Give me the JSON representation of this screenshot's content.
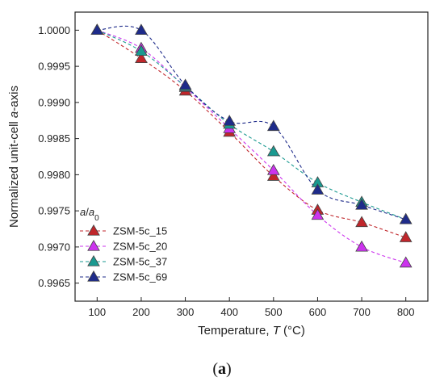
{
  "chart_data": {
    "type": "line",
    "markers": "triangle",
    "line_style": "dashed-smooth",
    "x": [
      100,
      200,
      300,
      400,
      500,
      600,
      700,
      800
    ],
    "series": [
      {
        "name": "ZSM-5c_15",
        "color": "#c0262b",
        "values": [
          1.0,
          0.99961,
          0.99916,
          0.99859,
          0.99798,
          0.99751,
          0.99734,
          0.99713
        ]
      },
      {
        "name": "ZSM-5c_20",
        "color": "#cc33ee",
        "values": [
          1.0,
          0.99975,
          0.99921,
          0.99864,
          0.99806,
          0.99744,
          0.997,
          0.99678
        ]
      },
      {
        "name": "ZSM-5c_37",
        "color": "#1a9990",
        "values": [
          1.0,
          0.99971,
          0.99922,
          0.9987,
          0.99832,
          0.99789,
          0.99762,
          0.99738
        ]
      },
      {
        "name": "ZSM-5c_69",
        "color": "#1e2b8a",
        "values": [
          1.0,
          1.0,
          0.99924,
          0.99874,
          0.99867,
          0.99779,
          0.99758,
          0.99738
        ]
      }
    ],
    "xlim": [
      50,
      850
    ],
    "ylim": [
      0.99625,
      1.00025
    ],
    "xticks": [
      100,
      200,
      300,
      400,
      500,
      600,
      700,
      800
    ],
    "yticks": [
      0.9965,
      0.997,
      0.9975,
      0.998,
      0.9985,
      0.999,
      0.9995,
      1.0
    ],
    "ytick_labels": [
      "0.9965",
      "0.9970",
      "0.9975",
      "0.9980",
      "0.9985",
      "0.9990",
      "0.9995",
      "1.0000"
    ],
    "ylabel_prefix": "Normalized unit-cell ",
    "ylabel_italic": "a",
    "ylabel_suffix": "-axis",
    "xlabel_prefix": "Temperature, ",
    "xlabel_italic": "T",
    "xlabel_suffix": " (°C)",
    "legend_title_italic_a": "a",
    "legend_title_slash": "/",
    "legend_title_italic_a0": "a",
    "legend_title_sub": "0",
    "legend_position": "bottom-left",
    "grid": false
  },
  "caption": {
    "open": "(",
    "letter": "a",
    "close": ")"
  }
}
